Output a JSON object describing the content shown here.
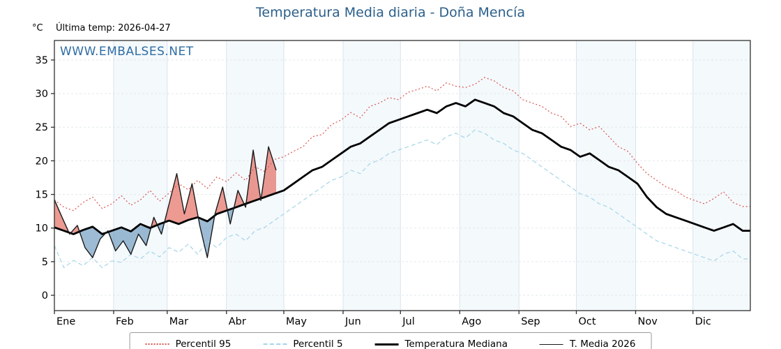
{
  "header": {
    "title": "Temperatura Media diaria - Doña Mencía",
    "unit": "°C",
    "last_temp": "Última temp: 2026-04-27"
  },
  "watermark": "WWW.EMBALSES.NET",
  "colors": {
    "title": "#2b5f8a",
    "watermark": "#2e6da4",
    "p95": "#d9534f",
    "p5": "#a5d5e8",
    "mediana": "#000000",
    "t2026": "#1a1a1a",
    "fill_above": "#e0564a",
    "fill_below": "#5b8db8",
    "band": "#f4f9fc",
    "grid": "#e3e8ec",
    "month_grid": "#d8e4ee",
    "axis": "#2f2f2f"
  },
  "legend": {
    "items": [
      {
        "label": "Percentil 95",
        "key": "p95",
        "line": "dotted",
        "weight": 2
      },
      {
        "label": "Percentil 5",
        "key": "p5",
        "line": "dashed",
        "weight": 2
      },
      {
        "label": "Temperatura Mediana",
        "key": "mediana",
        "line": "solid",
        "weight": 3
      },
      {
        "label": "T. Media 2026",
        "key": "t2026",
        "line": "solid",
        "weight": 1.5
      }
    ]
  },
  "chart_data": {
    "type": "line",
    "title": "Temperatura Media diaria - Doña Mencía",
    "xlabel": "",
    "ylabel": "°C",
    "ylim": [
      -2.28,
      37.9
    ],
    "yticks": [
      0,
      5,
      10,
      15,
      20,
      25,
      30,
      35
    ],
    "grid": true,
    "legend_position": "bottom",
    "month_labels": [
      "Ene",
      "Feb",
      "Mar",
      "Abr",
      "May",
      "Jun",
      "Jul",
      "Ago",
      "Sep",
      "Oct",
      "Nov",
      "Dic"
    ],
    "month_start_days": [
      1,
      32,
      60,
      91,
      121,
      152,
      182,
      213,
      244,
      274,
      305,
      335
    ],
    "x_days_full": [
      1,
      6,
      11,
      16,
      21,
      26,
      31,
      36,
      41,
      46,
      51,
      56,
      61,
      66,
      71,
      76,
      81,
      86,
      91,
      96,
      101,
      106,
      111,
      116,
      121,
      126,
      131,
      136,
      141,
      146,
      151,
      156,
      161,
      166,
      171,
      176,
      181,
      186,
      191,
      196,
      201,
      206,
      211,
      216,
      221,
      226,
      231,
      236,
      241,
      246,
      251,
      256,
      261,
      266,
      271,
      276,
      281,
      286,
      291,
      296,
      301,
      306,
      311,
      316,
      321,
      326,
      331,
      336,
      341,
      346,
      351,
      356,
      361
    ],
    "x_days_2026": [
      1,
      5,
      9,
      13,
      17,
      21,
      25,
      29,
      33,
      37,
      41,
      45,
      49,
      53,
      57,
      61,
      65,
      69,
      73,
      77,
      81,
      85,
      89,
      93,
      97,
      101,
      105,
      109,
      113,
      117
    ],
    "series": [
      {
        "name": "Percentil 95",
        "color_key": "p95",
        "style": "dotted",
        "width": 1.2,
        "x_ref": "x_days_full",
        "values": [
          14.2,
          13.1,
          12.6,
          13.8,
          14.6,
          12.9,
          13.6,
          14.8,
          13.4,
          14.2,
          15.6,
          14.0,
          15.2,
          16.6,
          15.7,
          17.1,
          15.9,
          17.6,
          16.9,
          18.2,
          17.1,
          19.1,
          18.4,
          20.2,
          20.6,
          21.4,
          22.1,
          23.6,
          23.9,
          25.4,
          26.1,
          27.2,
          26.4,
          28.1,
          28.6,
          29.4,
          29.1,
          30.2,
          30.6,
          31.1,
          30.4,
          31.6,
          31.1,
          30.9,
          31.4,
          32.4,
          31.9,
          30.9,
          30.4,
          29.1,
          28.6,
          28.1,
          27.1,
          26.6,
          25.1,
          25.6,
          24.6,
          25.1,
          23.6,
          22.1,
          21.4,
          19.6,
          18.1,
          17.1,
          16.1,
          15.6,
          14.6,
          14.1,
          13.6,
          14.4,
          15.4,
          13.8,
          13.2
        ]
      },
      {
        "name": "Percentil 5",
        "color_key": "p5",
        "style": "dashed",
        "width": 1.2,
        "x_ref": "x_days_full",
        "values": [
          7.4,
          4.1,
          5.2,
          4.4,
          5.6,
          4.1,
          5.1,
          4.9,
          6.1,
          5.4,
          6.6,
          5.7,
          7.1,
          6.4,
          7.6,
          6.1,
          8.1,
          7.1,
          8.6,
          9.1,
          8.1,
          9.6,
          10.1,
          11.1,
          12.1,
          13.1,
          14.1,
          15.1,
          16.1,
          17.1,
          17.6,
          18.6,
          18.1,
          19.6,
          20.1,
          21.1,
          21.6,
          22.1,
          22.6,
          23.1,
          22.4,
          23.6,
          24.1,
          23.4,
          24.6,
          24.1,
          23.1,
          22.6,
          21.6,
          21.1,
          20.1,
          19.1,
          18.1,
          17.1,
          16.1,
          15.1,
          14.6,
          13.6,
          13.1,
          12.1,
          11.1,
          10.1,
          9.1,
          8.1,
          7.6,
          7.1,
          6.6,
          6.1,
          5.6,
          5.1,
          6.1,
          6.6,
          5.4
        ]
      },
      {
        "name": "Temperatura Mediana",
        "color_key": "mediana",
        "style": "solid",
        "width": 2.8,
        "x_ref": "x_days_full",
        "values": [
          10.1,
          9.6,
          9.1,
          9.7,
          10.2,
          9.1,
          9.6,
          10.1,
          9.5,
          10.6,
          10.0,
          10.6,
          11.1,
          10.6,
          11.2,
          11.6,
          11.0,
          12.1,
          12.6,
          13.1,
          13.6,
          14.1,
          14.6,
          15.1,
          15.6,
          16.6,
          17.6,
          18.6,
          19.1,
          20.1,
          21.1,
          22.1,
          22.6,
          23.6,
          24.6,
          25.6,
          26.1,
          26.6,
          27.1,
          27.6,
          27.1,
          28.1,
          28.6,
          28.1,
          29.1,
          28.6,
          28.1,
          27.1,
          26.6,
          25.6,
          24.6,
          24.1,
          23.1,
          22.1,
          21.6,
          20.6,
          21.1,
          20.1,
          19.1,
          18.6,
          17.6,
          16.6,
          14.6,
          13.1,
          12.1,
          11.6,
          11.1,
          10.6,
          10.1,
          9.6,
          10.1,
          10.6,
          9.6
        ]
      },
      {
        "name": "T. Media 2026",
        "color_key": "t2026",
        "style": "solid",
        "width": 1.4,
        "x_ref": "x_days_2026",
        "values": [
          14.2,
          11.6,
          9.1,
          10.4,
          7.1,
          5.6,
          8.4,
          9.6,
          6.6,
          8.1,
          6.1,
          9.1,
          7.4,
          11.6,
          9.1,
          13.6,
          18.1,
          12.1,
          16.6,
          10.4,
          5.6,
          12.1,
          16.1,
          10.6,
          15.6,
          13.1,
          21.6,
          14.1,
          22.1,
          18.6
        ]
      }
    ],
    "fills": {
      "above_median_color_key": "fill_above",
      "below_median_color_key": "fill_below",
      "opacity": 0.6
    }
  }
}
